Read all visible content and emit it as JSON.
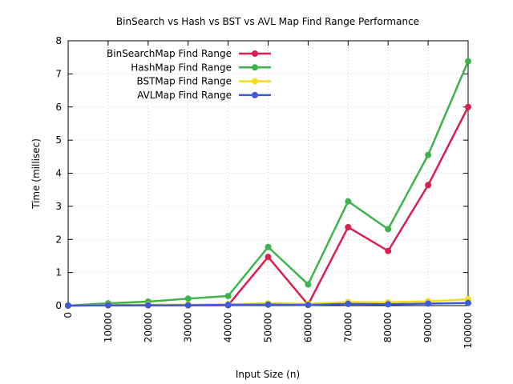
{
  "chart_data": {
    "type": "line",
    "title": "BinSearch vs Hash vs BST vs AVL Map Find Range Performance",
    "xlabel": "Input Size (n)",
    "ylabel": "Time (millisec)",
    "xlim": [
      0,
      100000
    ],
    "ylim": [
      0,
      8
    ],
    "x": [
      0,
      10000,
      20000,
      30000,
      40000,
      50000,
      60000,
      70000,
      80000,
      90000,
      100000
    ],
    "x_tick_labels": [
      "0",
      "10000",
      "20000",
      "30000",
      "40000",
      "50000",
      "60000",
      "70000",
      "80000",
      "90000",
      "100000"
    ],
    "y_ticks": [
      0,
      1,
      2,
      3,
      4,
      5,
      6,
      7,
      8
    ],
    "y_tick_labels": [
      "0",
      "1",
      "2",
      "3",
      "4",
      "5",
      "6",
      "7",
      "8"
    ],
    "grid": true,
    "legend_position": "top-left",
    "series": [
      {
        "name": "BinSearchMap Find Range",
        "color": "#dc1e50",
        "values": [
          0,
          0.01,
          0.01,
          0.01,
          0.01,
          1.47,
          0.03,
          2.37,
          1.65,
          3.64,
          6.0
        ]
      },
      {
        "name": "HashMap Find Range",
        "color": "#3cb44b",
        "values": [
          0,
          0.07,
          0.12,
          0.21,
          0.29,
          1.77,
          0.64,
          3.15,
          2.31,
          4.55,
          7.38
        ]
      },
      {
        "name": "BSTMap Find Range",
        "color": "#f5dc14",
        "values": [
          0,
          0.02,
          0.03,
          0.03,
          0.04,
          0.07,
          0.05,
          0.11,
          0.1,
          0.13,
          0.19
        ]
      },
      {
        "name": "AVLMap Find Range",
        "color": "#3c5adc",
        "values": [
          0,
          0.01,
          0.01,
          0.01,
          0.02,
          0.03,
          0.02,
          0.05,
          0.04,
          0.06,
          0.08
        ]
      }
    ]
  }
}
